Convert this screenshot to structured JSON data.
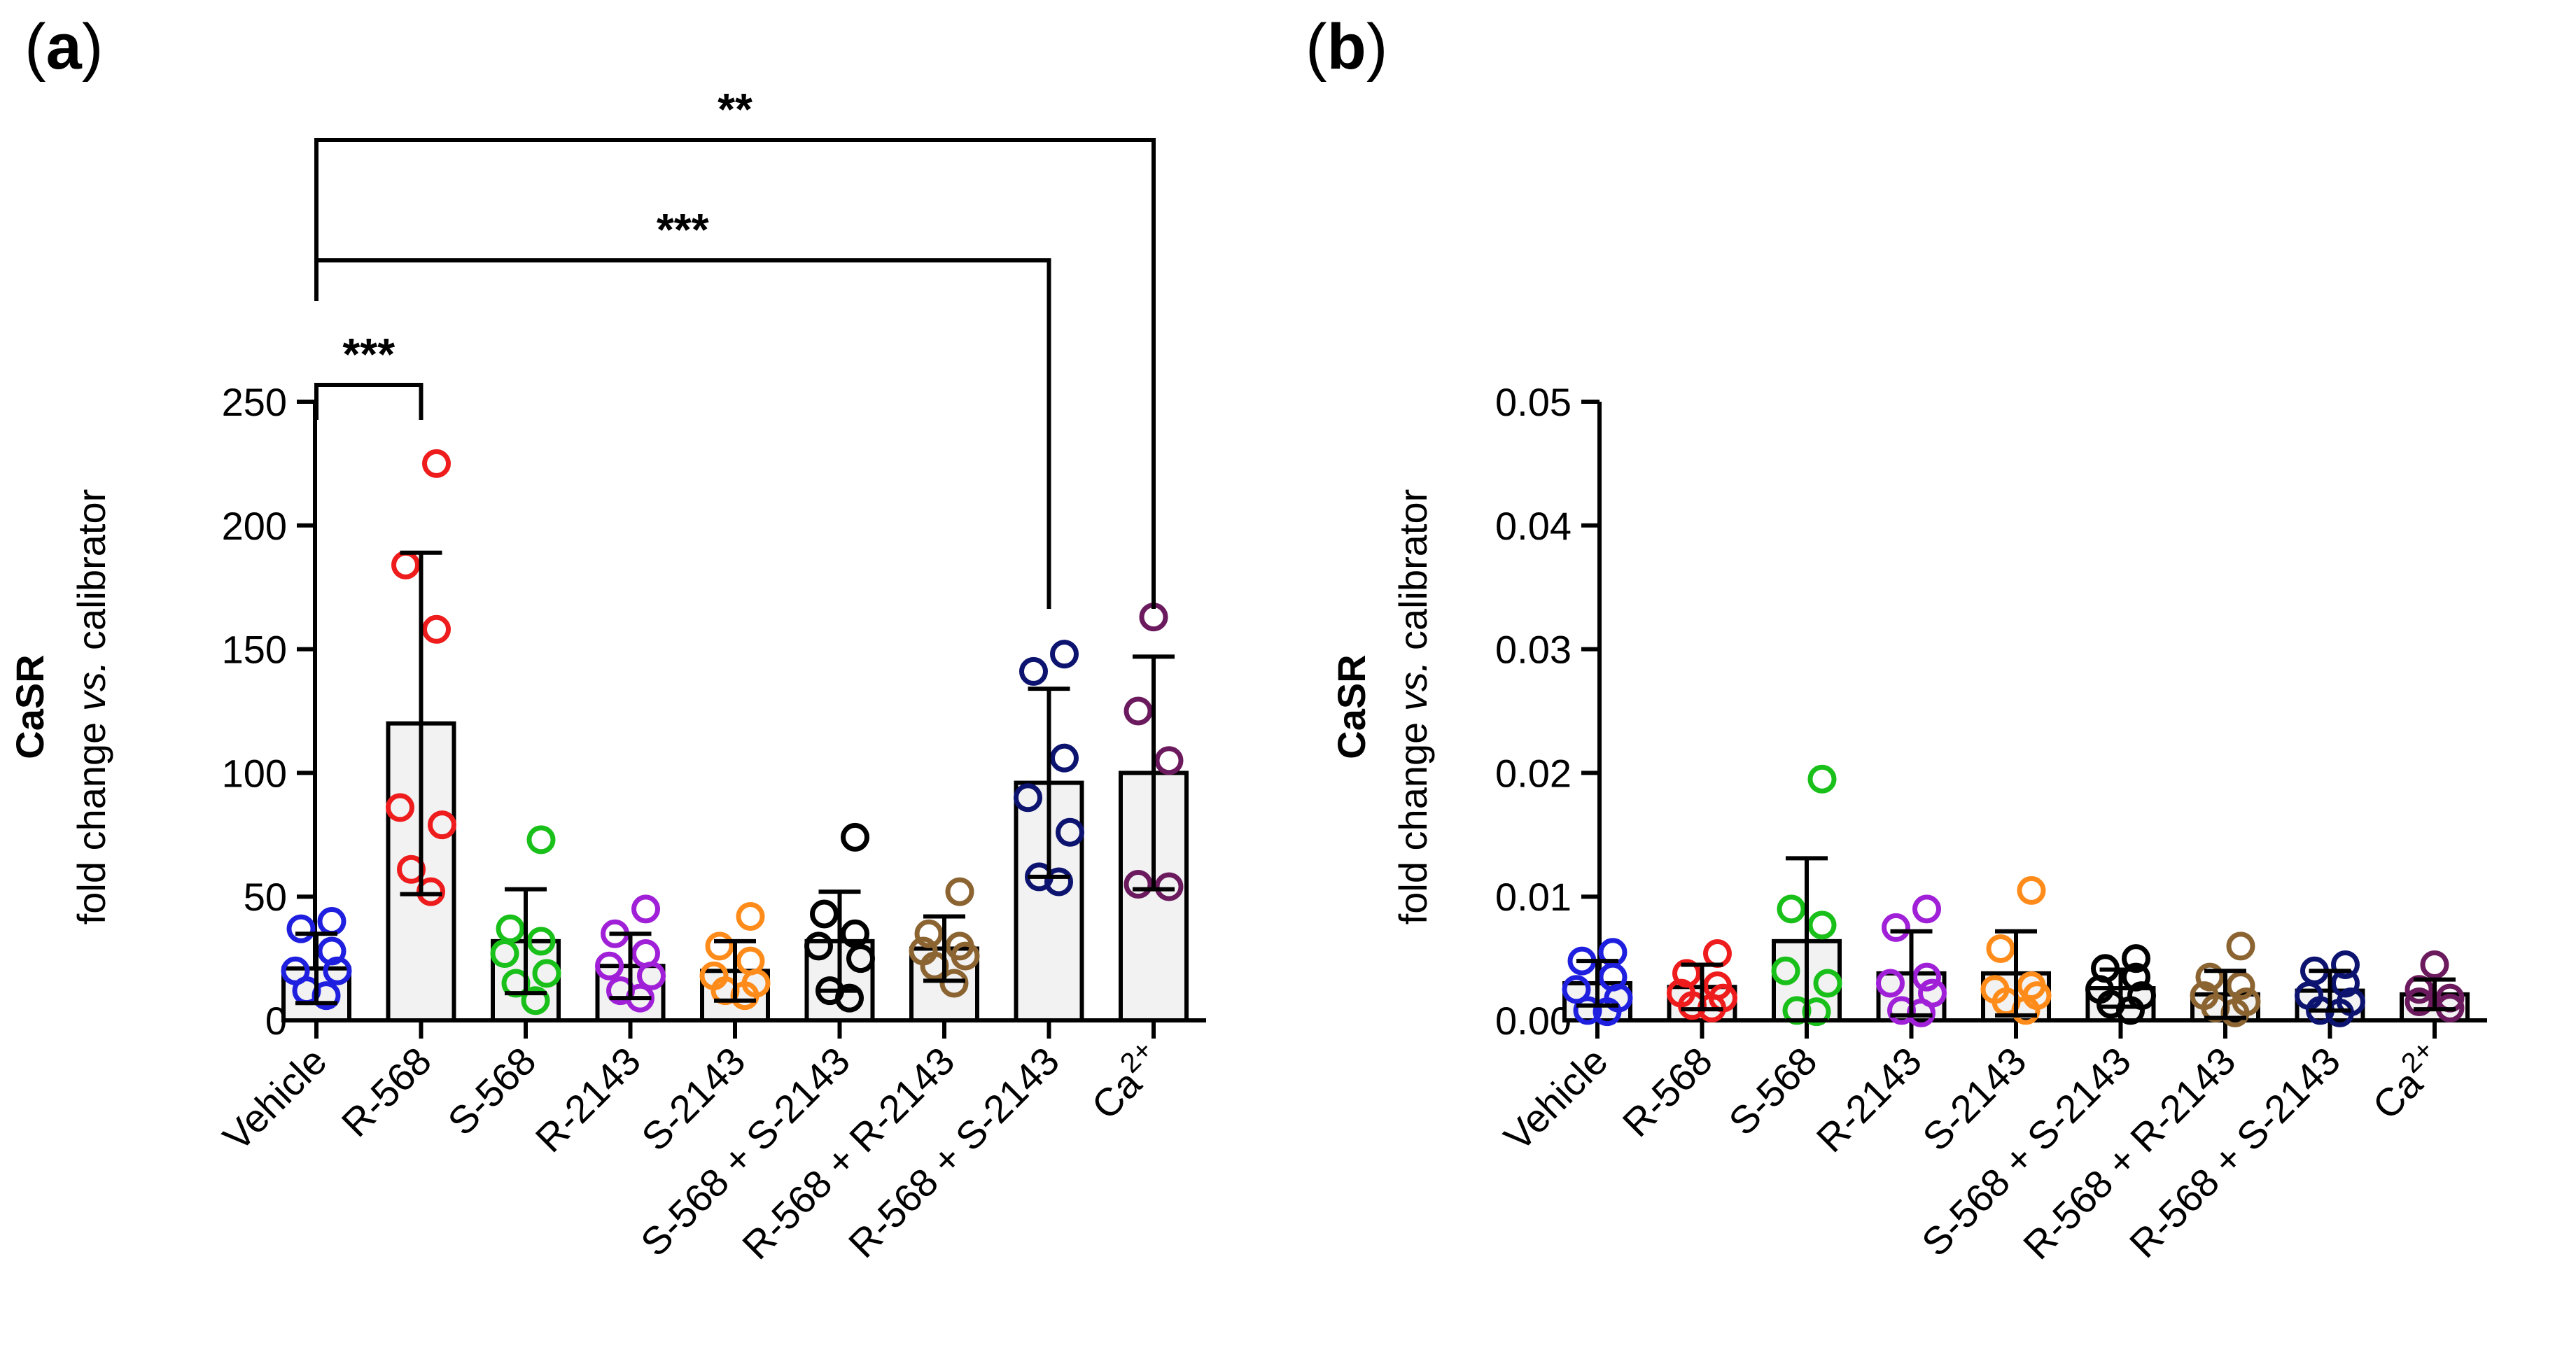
{
  "figure": {
    "accent": "#000000",
    "bar_fill": "#f2f2f2"
  },
  "chart_data": [
    {
      "id": "a",
      "panel_label_open": "(",
      "panel_label_letter": "a",
      "panel_label_close": ")",
      "type": "bar",
      "title": "",
      "ylabel_main": "CaSR",
      "ylabel_sub_pre": "fold change ",
      "ylabel_sub_italic": "vs.",
      "ylabel_sub_post": " calibrator",
      "xlabel": "",
      "ylim": [
        0,
        250
      ],
      "yticks": [
        0,
        50,
        100,
        150,
        200,
        250
      ],
      "ytick_labels": [
        "0",
        "50",
        "100",
        "150",
        "200",
        "250"
      ],
      "grid": false,
      "categories": [
        "Vehicle",
        "R-568",
        "S-568",
        "R-2143",
        "S-2143",
        "S-568 + S-2143",
        "R-568 + R-2143",
        "R-568 + S-2143",
        "Ca2+"
      ],
      "ca_label": {
        "base": "Ca",
        "sup": "2+"
      },
      "colors": [
        "#1f1fe0",
        "#ee1c1c",
        "#19c019",
        "#a020d8",
        "#ff8c1a",
        "#000000",
        "#8b6431",
        "#0d1470",
        "#6b1a5e"
      ],
      "means": [
        21,
        120,
        32,
        22,
        20,
        32,
        29,
        96,
        100
      ],
      "sd": [
        14,
        69,
        21,
        13,
        12,
        20,
        13,
        38,
        47
      ],
      "points": [
        [
          40,
          37,
          28,
          20,
          20,
          12,
          10
        ],
        [
          225,
          184,
          158,
          86,
          79,
          61,
          52
        ],
        [
          73,
          37,
          32,
          27,
          19,
          15,
          8
        ],
        [
          45,
          35,
          27,
          22,
          18,
          12,
          9
        ],
        [
          42,
          30,
          24,
          18,
          15,
          12,
          10
        ],
        [
          74,
          43,
          35,
          30,
          25,
          12,
          9
        ],
        [
          52,
          35,
          30,
          28,
          26,
          22,
          15
        ],
        [
          148,
          141,
          106,
          90,
          76,
          58,
          56
        ],
        [
          163,
          125,
          105,
          55,
          54
        ]
      ],
      "significance": [
        {
          "from": 0,
          "to": 1,
          "label": "***"
        },
        {
          "from": 0,
          "to": 7,
          "label": "***"
        },
        {
          "from": 0,
          "to": 8,
          "label": "**"
        }
      ]
    },
    {
      "id": "b",
      "panel_label_open": "(",
      "panel_label_letter": "b",
      "panel_label_close": ")",
      "type": "bar",
      "title": "",
      "ylabel_main": "CaSR",
      "ylabel_sub_pre": "fold change ",
      "ylabel_sub_italic": "vs.",
      "ylabel_sub_post": " calibrator",
      "xlabel": "",
      "ylim": [
        0,
        0.05
      ],
      "yticks": [
        0,
        0.01,
        0.02,
        0.03,
        0.04,
        0.05
      ],
      "ytick_labels": [
        "0.00",
        "0.01",
        "0.02",
        "0.03",
        "0.04",
        "0.05"
      ],
      "grid": false,
      "categories": [
        "Vehicle",
        "R-568",
        "S-568",
        "R-2143",
        "S-2143",
        "S-568 + S-2143",
        "R-568 + R-2143",
        "R-568 + S-2143",
        "Ca2+"
      ],
      "ca_label": {
        "base": "Ca",
        "sup": "2+"
      },
      "colors": [
        "#1f1fe0",
        "#ee1c1c",
        "#19c019",
        "#a020d8",
        "#ff8c1a",
        "#000000",
        "#8b6431",
        "#0d1470",
        "#6b1a5e"
      ],
      "means": [
        0.003,
        0.0027,
        0.0064,
        0.0038,
        0.0038,
        0.0026,
        0.0021,
        0.0024,
        0.0021
      ],
      "sd": [
        0.0018,
        0.0018,
        0.0067,
        0.0034,
        0.0034,
        0.0015,
        0.0019,
        0.0016,
        0.0012
      ],
      "points": [
        [
          0.0055,
          0.0048,
          0.0035,
          0.0025,
          0.0018,
          0.0008,
          0.0007
        ],
        [
          0.0054,
          0.0038,
          0.0028,
          0.0022,
          0.0018,
          0.0012,
          0.001
        ],
        [
          0.0195,
          0.009,
          0.0077,
          0.004,
          0.003,
          0.0008,
          0.0007
        ],
        [
          0.009,
          0.0075,
          0.0035,
          0.003,
          0.0022,
          0.0008,
          0.0006
        ],
        [
          0.0105,
          0.0058,
          0.0028,
          0.0025,
          0.002,
          0.0015,
          0.0008
        ],
        [
          0.005,
          0.0042,
          0.0035,
          0.0025,
          0.002,
          0.0013,
          0.0008
        ],
        [
          0.006,
          0.0035,
          0.0028,
          0.002,
          0.0015,
          0.001,
          0.0006
        ],
        [
          0.0045,
          0.004,
          0.003,
          0.002,
          0.0015,
          0.0008,
          0.0006
        ],
        [
          0.0045,
          0.0025,
          0.0018,
          0.0015,
          0.001
        ]
      ],
      "significance": []
    }
  ]
}
